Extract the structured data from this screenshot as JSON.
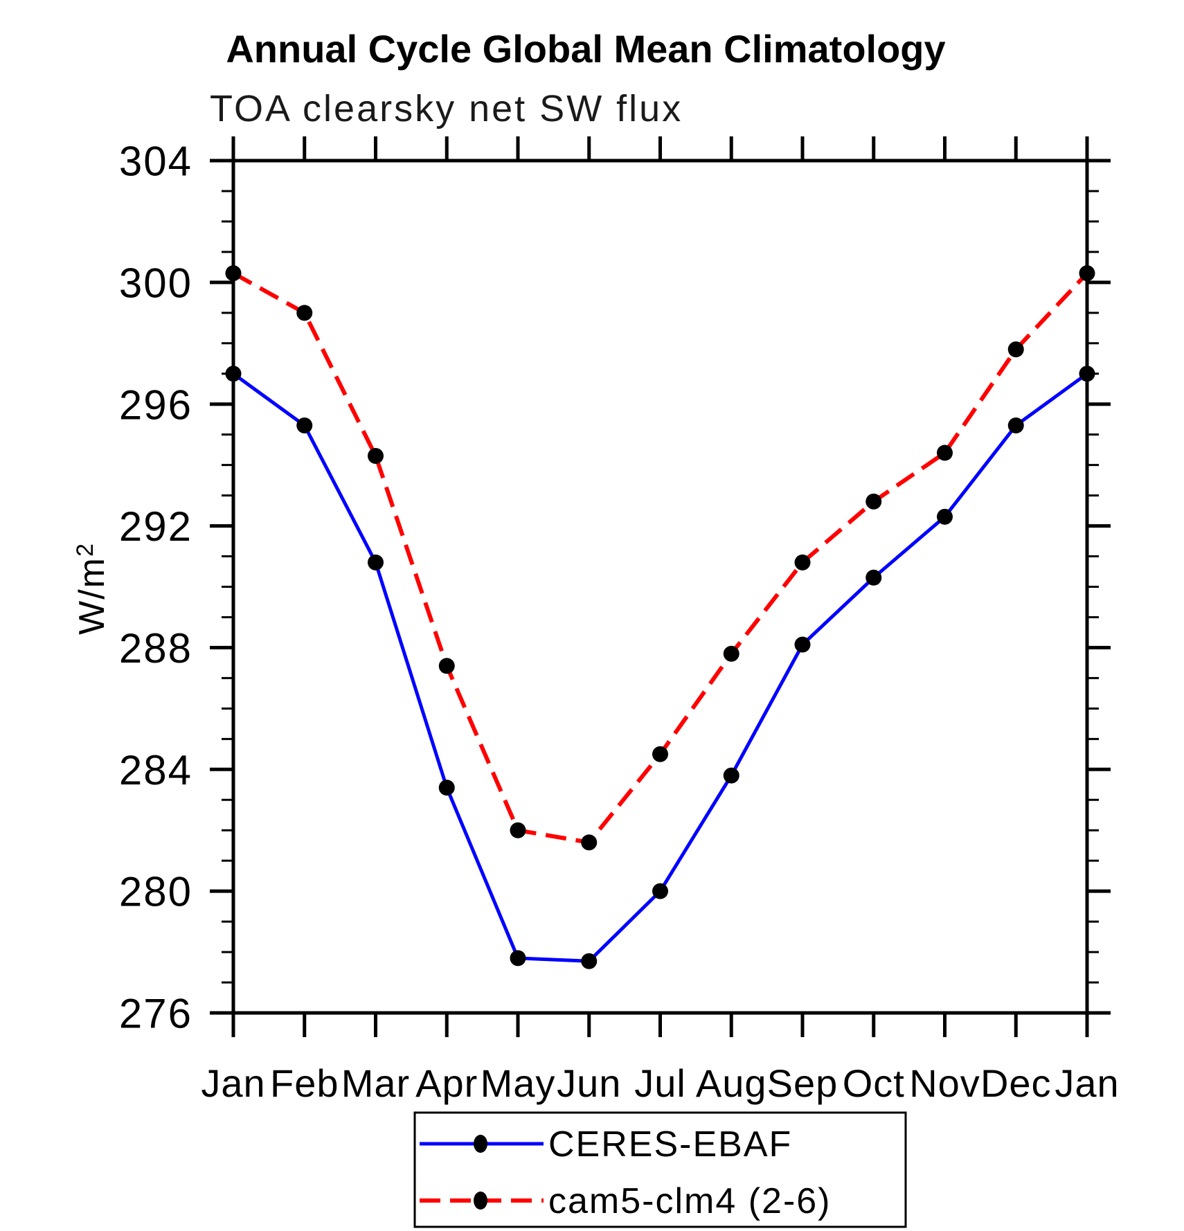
{
  "header": {
    "title": "Annual Cycle Global Mean Climatology",
    "subtitle": "TOA clearsky net SW flux"
  },
  "chart_data": {
    "type": "line",
    "title": "Annual Cycle Global Mean Climatology",
    "subtitle": "TOA clearsky net SW flux",
    "ylabel_base": "W/m",
    "ylabel_sup": "2",
    "categories": [
      "Jan",
      "Feb",
      "Mar",
      "Apr",
      "May",
      "Jun",
      "Jul",
      "Aug",
      "Sep",
      "Oct",
      "Nov",
      "Dec",
      "Jan"
    ],
    "ylim": [
      276,
      304
    ],
    "y_major_ticks": [
      276,
      280,
      284,
      288,
      292,
      296,
      300,
      304
    ],
    "y_minor_step": 1,
    "grid": "off",
    "legend_position": "bottom-center",
    "axis_color": "#000000",
    "marker_shape": "filled-circle",
    "series": [
      {
        "name": "CERES-EBAF",
        "line_color": "#0000ff",
        "line_style": "solid",
        "marker": "filled-circle",
        "marker_color": "#000000",
        "values": [
          297.0,
          295.3,
          290.8,
          283.4,
          277.8,
          277.7,
          280.0,
          283.8,
          288.1,
          290.3,
          292.3,
          295.3,
          297.0
        ]
      },
      {
        "name": "cam5-clm4 (2-6)",
        "line_color": "#ff0000",
        "line_style": "dashed",
        "marker": "filled-circle",
        "marker_color": "#000000",
        "values": [
          300.3,
          299.0,
          294.3,
          287.4,
          282.0,
          281.6,
          284.5,
          287.8,
          290.8,
          292.8,
          294.4,
          297.8,
          300.3
        ]
      }
    ]
  }
}
